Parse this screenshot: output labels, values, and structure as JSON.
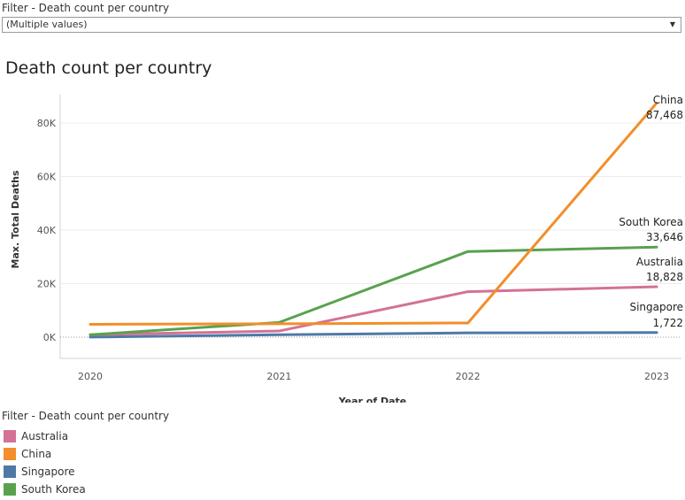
{
  "filter": {
    "title": "Filter - Death count per country",
    "selected_value": "(Multiple values)"
  },
  "chart_data": {
    "type": "line",
    "title": "Death count per country",
    "xlabel": "Year of Date",
    "ylabel": "Max. Total Deaths",
    "x": [
      "2020",
      "2021",
      "2022",
      "2023"
    ],
    "ylim": [
      0,
      90000
    ],
    "yticks": [
      {
        "value": 0,
        "label": "0K"
      },
      {
        "value": 20000,
        "label": "20K"
      },
      {
        "value": 40000,
        "label": "40K"
      },
      {
        "value": 60000,
        "label": "60K"
      },
      {
        "value": 80000,
        "label": "80K"
      }
    ],
    "grid": true,
    "series": [
      {
        "name": "China",
        "color": "#f28e2b",
        "values": [
          4800,
          5000,
          5300,
          87468
        ],
        "end_label": "87,468"
      },
      {
        "name": "South Korea",
        "color": "#59a14f",
        "values": [
          900,
          5500,
          32000,
          33646
        ],
        "end_label": "33,646"
      },
      {
        "name": "Australia",
        "color": "#d37295",
        "values": [
          900,
          2300,
          17000,
          18828
        ],
        "end_label": "18,828"
      },
      {
        "name": "Singapore",
        "color": "#4e79a7",
        "values": [
          30,
          900,
          1600,
          1722
        ],
        "end_label": "1,722"
      }
    ]
  },
  "legend": {
    "title": "Filter - Death count per country",
    "items": [
      {
        "label": "Australia",
        "color": "#d37295"
      },
      {
        "label": "China",
        "color": "#f28e2b"
      },
      {
        "label": "Singapore",
        "color": "#4e79a7"
      },
      {
        "label": "South Korea",
        "color": "#59a14f"
      }
    ]
  }
}
